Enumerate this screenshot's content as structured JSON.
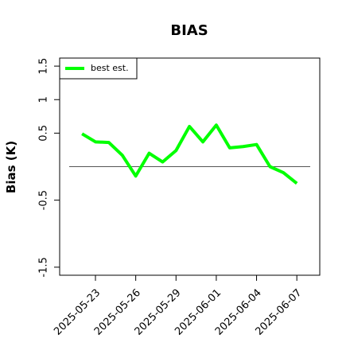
{
  "chart_data": {
    "type": "line",
    "title": "BIAS",
    "ylabel": "Bias (K)",
    "x": [
      "2025-05-22",
      "2025-05-23",
      "2025-05-24",
      "2025-05-25",
      "2025-05-26",
      "2025-05-27",
      "2025-05-28",
      "2025-05-29",
      "2025-05-30",
      "2025-05-31",
      "2025-06-01",
      "2025-06-02",
      "2025-06-03",
      "2025-06-04",
      "2025-06-05",
      "2025-06-06",
      "2025-06-07"
    ],
    "series": [
      {
        "name": "best est.",
        "color": "#00ff00",
        "values": [
          0.49,
          0.37,
          0.36,
          0.17,
          -0.14,
          0.2,
          0.07,
          0.24,
          0.6,
          0.37,
          0.62,
          0.28,
          0.3,
          0.33,
          0,
          -0.09,
          -0.25
        ]
      }
    ],
    "hline": 0,
    "xlim": [
      "2025-05-20T08:00Z",
      "2025-06-08T17:00Z"
    ],
    "xticks": [
      "2025-05-23",
      "2025-05-26",
      "2025-05-29",
      "2025-06-01",
      "2025-06-04",
      "2025-06-07"
    ],
    "ylim": [
      -1.62,
      1.62
    ],
    "yticks": [
      -1.5,
      -0.5,
      0.5,
      1.0,
      1.5
    ],
    "legend": "top-left"
  }
}
